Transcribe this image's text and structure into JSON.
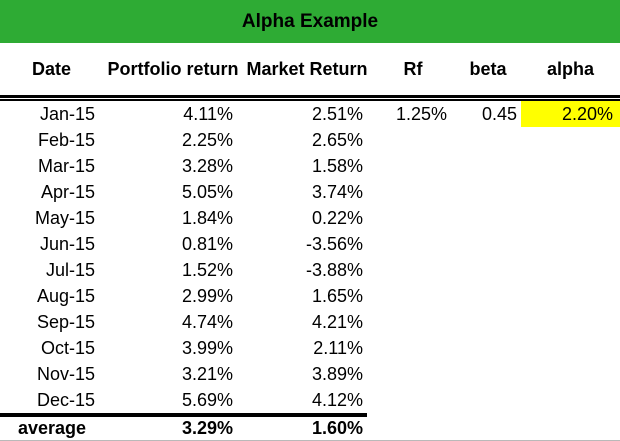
{
  "title": "Alpha Example",
  "colors": {
    "banner_green": "#2EAB34",
    "highlight_yellow": "#FFFF00",
    "text": "#000000"
  },
  "columns": {
    "date": "Date",
    "portfolio": "Portfolio return",
    "market": "Market Return",
    "rf": "Rf",
    "beta": "beta",
    "alpha": "alpha"
  },
  "rows": [
    {
      "date": "Jan-15",
      "portfolio": "4.11%",
      "market": "2.51%",
      "rf": "1.25%",
      "beta": "0.45",
      "alpha": "2.20%"
    },
    {
      "date": "Feb-15",
      "portfolio": "2.25%",
      "market": "2.65%"
    },
    {
      "date": "Mar-15",
      "portfolio": "3.28%",
      "market": "1.58%"
    },
    {
      "date": "Apr-15",
      "portfolio": "5.05%",
      "market": "3.74%"
    },
    {
      "date": "May-15",
      "portfolio": "1.84%",
      "market": "0.22%"
    },
    {
      "date": "Jun-15",
      "portfolio": "0.81%",
      "market": "-3.56%"
    },
    {
      "date": "Jul-15",
      "portfolio": "1.52%",
      "market": "-3.88%"
    },
    {
      "date": "Aug-15",
      "portfolio": "2.99%",
      "market": "1.65%"
    },
    {
      "date": "Sep-15",
      "portfolio": "4.74%",
      "market": "4.21%"
    },
    {
      "date": "Oct-15",
      "portfolio": "3.99%",
      "market": "2.11%"
    },
    {
      "date": "Nov-15",
      "portfolio": "3.21%",
      "market": "3.89%"
    },
    {
      "date": "Dec-15",
      "portfolio": "5.69%",
      "market": "4.12%"
    }
  ],
  "average": {
    "label": "average",
    "portfolio": "3.29%",
    "market": "1.60%"
  }
}
